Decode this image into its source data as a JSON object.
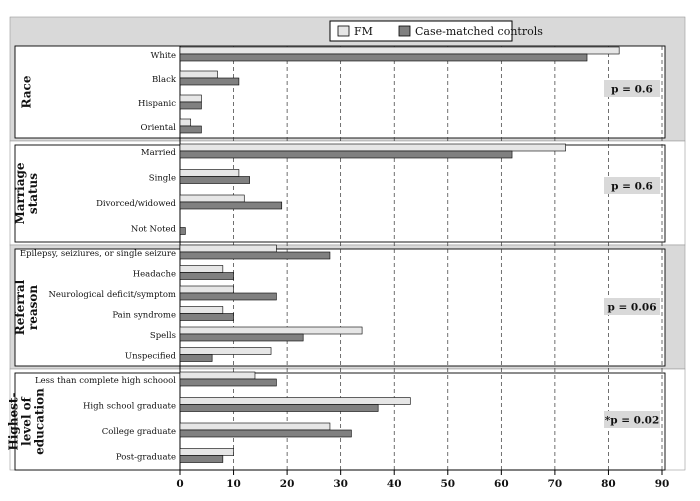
{
  "chart_data": {
    "type": "bar",
    "orientation": "horizontal",
    "xlim": [
      0,
      90
    ],
    "xticks": [
      0,
      10,
      20,
      30,
      40,
      50,
      60,
      70,
      80,
      90
    ],
    "grid": "vertical dashed",
    "legend_placement": "top",
    "series": [
      {
        "name": "FM",
        "color": "#e6e6e6"
      },
      {
        "name": "Case-matched controls",
        "color": "#808080"
      }
    ],
    "groups": [
      {
        "title": "Race",
        "p_value": "p = 0.6",
        "categories": [
          "White",
          "Black",
          "Hispanic",
          "Oriental"
        ],
        "fm": [
          82,
          7,
          4,
          2
        ],
        "controls": [
          76,
          11,
          4,
          4
        ]
      },
      {
        "title": "Marriage status",
        "title_lines": [
          "Marriage",
          "status"
        ],
        "p_value": "p = 0.6",
        "categories": [
          "Married",
          "Single",
          "Divorced/widowed",
          "Not Noted"
        ],
        "fm": [
          72,
          11,
          12,
          0
        ],
        "controls": [
          62,
          13,
          19,
          1
        ]
      },
      {
        "title": "Referral reason",
        "title_lines": [
          "Referral",
          "reason"
        ],
        "p_value": "p = 0.06",
        "categories": [
          "Epilepsy, seiziures, or single seizure",
          "Headache",
          "Neurological deficit/symptom",
          "Pain syndrome",
          "Spells",
          "Unspecified"
        ],
        "fm": [
          18,
          8,
          10,
          8,
          34,
          17
        ],
        "controls": [
          28,
          10,
          18,
          10,
          23,
          6
        ]
      },
      {
        "title": "Highest-level of education",
        "title_lines": [
          "Highest-",
          "level of",
          "education"
        ],
        "p_value": "*p = 0.02",
        "categories": [
          "Less than complete high schoool",
          "High school graduate",
          "College graduate",
          "Post-graduate"
        ],
        "fm": [
          14,
          43,
          28,
          10
        ],
        "controls": [
          18,
          37,
          32,
          8
        ]
      }
    ]
  },
  "colors": {
    "band_dark": "#d9d9d9",
    "band_light": "#ffffff",
    "fm_fill": "#e6e6e6",
    "controls_fill": "#808080",
    "pbox_fill": "#d9d9d9"
  }
}
